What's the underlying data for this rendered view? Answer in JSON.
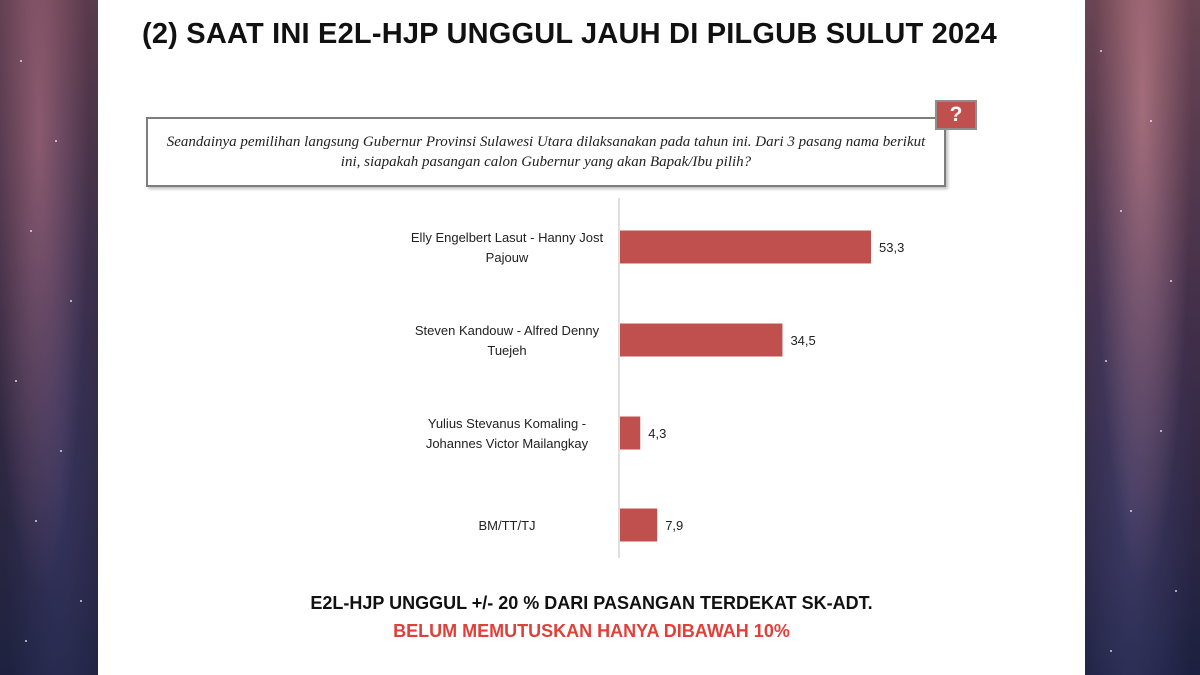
{
  "slide": {
    "title": "(2) SAAT INI E2L-HJP UNGGUL JAUH DI PILGUB SULUT 2024",
    "question": "Seandainya pemilihan langsung Gubernur Provinsi Sulawesi Utara dilaksanakan pada tahun ini. Dari 3 pasang nama berikut ini, siapakah pasangan calon Gubernur yang akan Bapak/Ibu pilih?",
    "question_badge": "?",
    "footer_line1": "E2L-HJP UNGGUL +/- 20 % DARI PASANGAN TERDEKAT SK-ADT.",
    "footer_line2": "BELUM MEMUTUSKAN HANYA DIBAWAH 10%"
  },
  "colors": {
    "bar": "#c0504d",
    "footer_highlight": "#e0403a"
  },
  "chart_data": {
    "type": "bar",
    "orientation": "horizontal",
    "categories": [
      [
        "Elly Engelbert Lasut - Hanny Jost",
        "Pajouw"
      ],
      [
        "Steven Kandouw - Alfred Denny",
        "Tuejeh"
      ],
      [
        "Yulius Stevanus Komaling -",
        "Johannes Victor Mailangkay"
      ],
      [
        "BM/TT/TJ"
      ]
    ],
    "values": [
      53.3,
      34.5,
      4.3,
      7.9
    ],
    "value_labels": [
      "53,3",
      "34,5",
      "4,3",
      "7,9"
    ],
    "xlim": [
      0,
      60
    ],
    "grid": false,
    "legend": "none"
  }
}
